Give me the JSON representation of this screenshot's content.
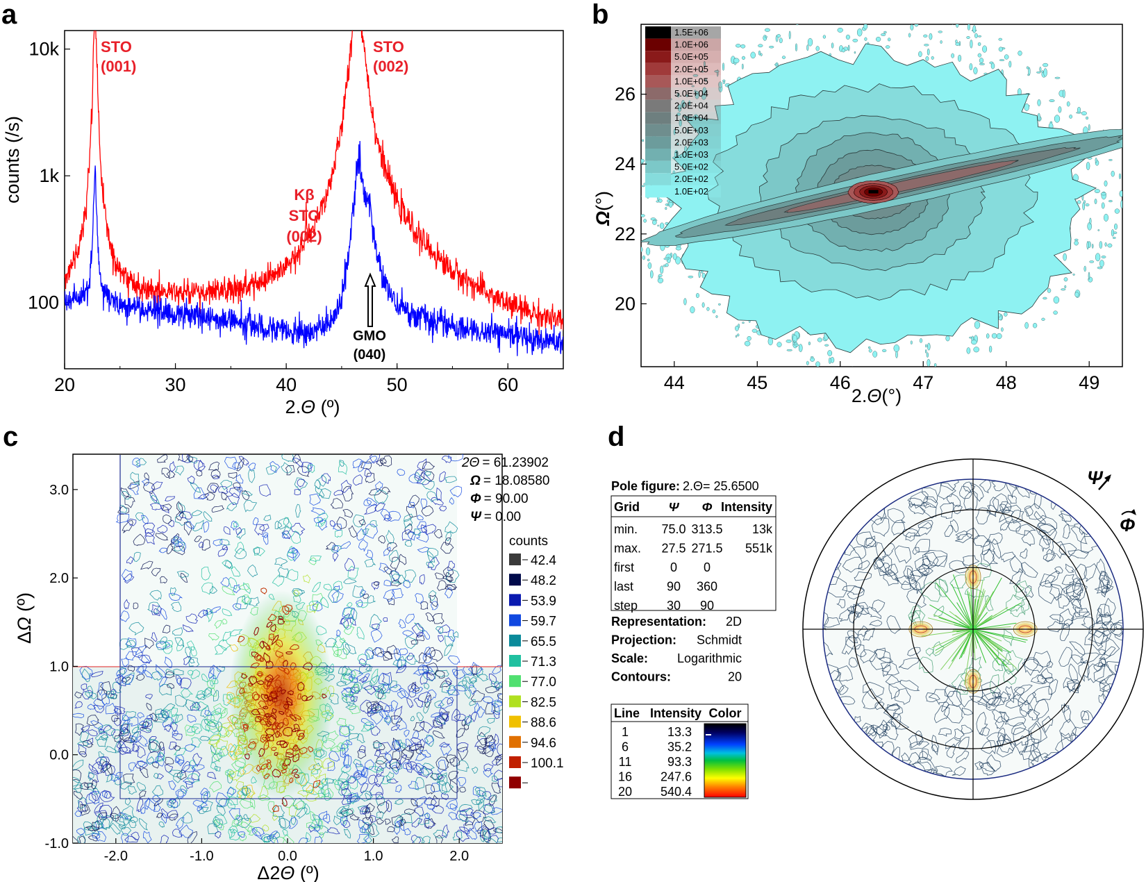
{
  "panels": {
    "a": {
      "letter": "a",
      "ylabel": "counts (/s)",
      "xlabel_pre": "2.",
      "xlabel_sym": "Θ",
      "xlabel_post": " (º)",
      "annotations": [
        {
          "lines": [
            "STO",
            "(001)"
          ],
          "color": "#e8202a"
        },
        {
          "lines": [
            "STO",
            "(002)"
          ],
          "color": "#e8202a"
        },
        {
          "lines": [
            "Kβ",
            "STO",
            "(002)"
          ],
          "color": "#e8202a"
        },
        {
          "lines": [
            "GMO",
            "(040)"
          ],
          "color": "#000000"
        }
      ]
    },
    "b": {
      "letter": "b",
      "ylabel_sym": "Ω",
      "ylabel_post": "(°)",
      "xlabel_pre": "2.",
      "xlabel_sym": "Θ",
      "xlabel_post": "(°)",
      "colorbar": {
        "labels": [
          "1.5E+06",
          "1.0E+06",
          "5.0E+05",
          "2.0E+05",
          "1.0E+05",
          "5.0E+04",
          "2.0E+04",
          "1.0E+04",
          "5.0E+03",
          "2.0E+03",
          "1.0E+03",
          "5.0E+02",
          "2.0E+02",
          "1.0E+02"
        ],
        "colors": [
          "#000000",
          "#6b0000",
          "#8a1a1a",
          "#a03a3a",
          "#a85858",
          "#8c6a6a",
          "#7a7a7a",
          "#6e7f7f",
          "#6f8e8e",
          "#6c9c9c",
          "#72b0b0",
          "#7cc8c8",
          "#86dcdc",
          "#8ef2f2"
        ]
      }
    },
    "c": {
      "letter": "c",
      "ylabel_pre": "Δ",
      "ylabel_sym": "Ω",
      "ylabel_post": " (º)",
      "xlabel_pre": "Δ2",
      "xlabel_sym": "Θ",
      "xlabel_post": " (º)",
      "params": [
        {
          "sym": "2Θ",
          "val": "= 61.23902"
        },
        {
          "sym": "Ω",
          "val": "= 18.08580"
        },
        {
          "sym": "Φ",
          "val": "= 90.00"
        },
        {
          "sym": "Ψ",
          "val": "=   0.00"
        }
      ],
      "legend_title": "counts",
      "legend": [
        {
          "label": "42.4",
          "color": "#3a3a3a"
        },
        {
          "label": "48.2",
          "color": "#000a4a"
        },
        {
          "label": "53.9",
          "color": "#0a1ab0"
        },
        {
          "label": "59.7",
          "color": "#1048e0"
        },
        {
          "label": "65.5",
          "color": "#0a8a9a"
        },
        {
          "label": "71.3",
          "color": "#20c0a0"
        },
        {
          "label": "77.0",
          "color": "#50e070"
        },
        {
          "label": "82.5",
          "color": "#b0e020"
        },
        {
          "label": "88.6",
          "color": "#f0c000"
        },
        {
          "label": "94.6",
          "color": "#e07000"
        },
        {
          "label": "100.1",
          "color": "#c02000"
        },
        {
          "label": "",
          "color": "#900000"
        }
      ]
    },
    "d": {
      "letter": "d",
      "pole_title": "Pole figure:",
      "pole_theta": "2.Θ= 25.6500",
      "grid_header": [
        "Grid",
        "Ψ",
        "Φ",
        "Intensity"
      ],
      "grid_rows": [
        [
          "min.",
          "75.0",
          "313.5",
          "13k"
        ],
        [
          "max.",
          "27.5",
          "271.5",
          "551k"
        ],
        [
          "first",
          "0",
          "0",
          ""
        ],
        [
          "last",
          "90",
          "360",
          ""
        ],
        [
          "step",
          "30",
          "90",
          ""
        ]
      ],
      "props": [
        {
          "key": "Representation:",
          "val": "2D"
        },
        {
          "key": "Projection:",
          "val": "Schmidt"
        },
        {
          "key": "Scale:",
          "val": "Logarithmic"
        },
        {
          "key": "Contours:",
          "val": "20"
        }
      ],
      "line_header": [
        "Line",
        "Intensity",
        "Color"
      ],
      "line_rows": [
        [
          "1",
          "13.3"
        ],
        [
          "6",
          "35.2"
        ],
        [
          "11",
          "93.3"
        ],
        [
          "16",
          "247.6"
        ],
        [
          "20",
          "540.4"
        ]
      ],
      "psi_label": "Ψ",
      "phi_label": "Φ"
    }
  },
  "chart_data": [
    {
      "type": "line",
      "panel": "a",
      "xlim": [
        20,
        65
      ],
      "ylim": [
        30,
        14000
      ],
      "yscale": "log",
      "xticks": [
        20,
        30,
        40,
        50,
        60
      ],
      "yticks": [
        {
          "value": 100,
          "label": "100"
        },
        {
          "value": 1000,
          "label": "1k"
        },
        {
          "value": 10000,
          "label": "10k"
        }
      ],
      "series": [
        {
          "color": "#ff0000",
          "baseline": [
            [
              20,
              118
            ],
            [
              22,
              125
            ],
            [
              25,
              110
            ],
            [
              30,
              95
            ],
            [
              35,
              85
            ],
            [
              40,
              68
            ],
            [
              42,
              62
            ],
            [
              44,
              80
            ],
            [
              45,
              200
            ],
            [
              46,
              3000
            ],
            [
              47,
              3000
            ],
            [
              48,
              600
            ],
            [
              50,
              250
            ],
            [
              52,
              170
            ],
            [
              55,
              110
            ],
            [
              60,
              70
            ],
            [
              65,
              55
            ]
          ],
          "peaks": [
            {
              "x": 22.75,
              "peak": 20000,
              "width": 0.25
            },
            {
              "x": 46.4,
              "peak": 20000,
              "width": 1.0
            },
            {
              "x": 41.8,
              "peak": 230,
              "width": 0.1
            }
          ]
        },
        {
          "color": "#0000ff",
          "baseline": [
            [
              20,
              100
            ],
            [
              22,
              110
            ],
            [
              25,
              95
            ],
            [
              30,
              80
            ],
            [
              35,
              72
            ],
            [
              40,
              58
            ],
            [
              42,
              55
            ],
            [
              44,
              58
            ],
            [
              45,
              70
            ],
            [
              46,
              300
            ],
            [
              47,
              500
            ],
            [
              48,
              180
            ],
            [
              50,
              85
            ],
            [
              55,
              62
            ],
            [
              60,
              55
            ],
            [
              65,
              48
            ]
          ],
          "peaks": [
            {
              "x": 22.75,
              "peak": 1050,
              "width": 0.22
            },
            {
              "x": 46.5,
              "peak": 1000,
              "width": 0.5
            },
            {
              "x": 47.5,
              "peak": 280,
              "width": 0.6
            }
          ]
        }
      ]
    },
    {
      "type": "heatmap",
      "panel": "b",
      "xlim": [
        43.6,
        49.4
      ],
      "ylim": [
        18.2,
        28.0
      ],
      "xticks": [
        44,
        45,
        46,
        47,
        48,
        49
      ],
      "yticks": [
        20,
        22,
        24,
        26
      ],
      "peak_center": [
        46.4,
        23.2
      ]
    },
    {
      "type": "heatmap",
      "panel": "c",
      "xlim": [
        -2.5,
        2.5
      ],
      "ylim": [
        -1.0,
        3.4
      ],
      "xticks": [
        {
          "value": -2.0,
          "label": "-2.0"
        },
        {
          "value": -1.0,
          "label": "-1.0"
        },
        {
          "value": 0.0,
          "label": "0.0"
        },
        {
          "value": 1.0,
          "label": "1.0"
        },
        {
          "value": 2.0,
          "label": "2.0"
        }
      ],
      "yticks": [
        {
          "value": -1.0,
          "label": "-1.0"
        },
        {
          "value": 0.0,
          "label": "0.0"
        },
        {
          "value": 1.0,
          "label": "1.0"
        },
        {
          "value": 2.0,
          "label": "2.0"
        },
        {
          "value": 3.0,
          "label": "3.0"
        }
      ],
      "peak_center": [
        -0.15,
        0.6
      ]
    },
    {
      "type": "heatmap",
      "panel": "d",
      "projection": "polar",
      "psi_rings": [
        30,
        60,
        90
      ],
      "poles_phi": [
        0,
        90,
        180,
        270
      ],
      "poles_psi": 27.5
    }
  ]
}
